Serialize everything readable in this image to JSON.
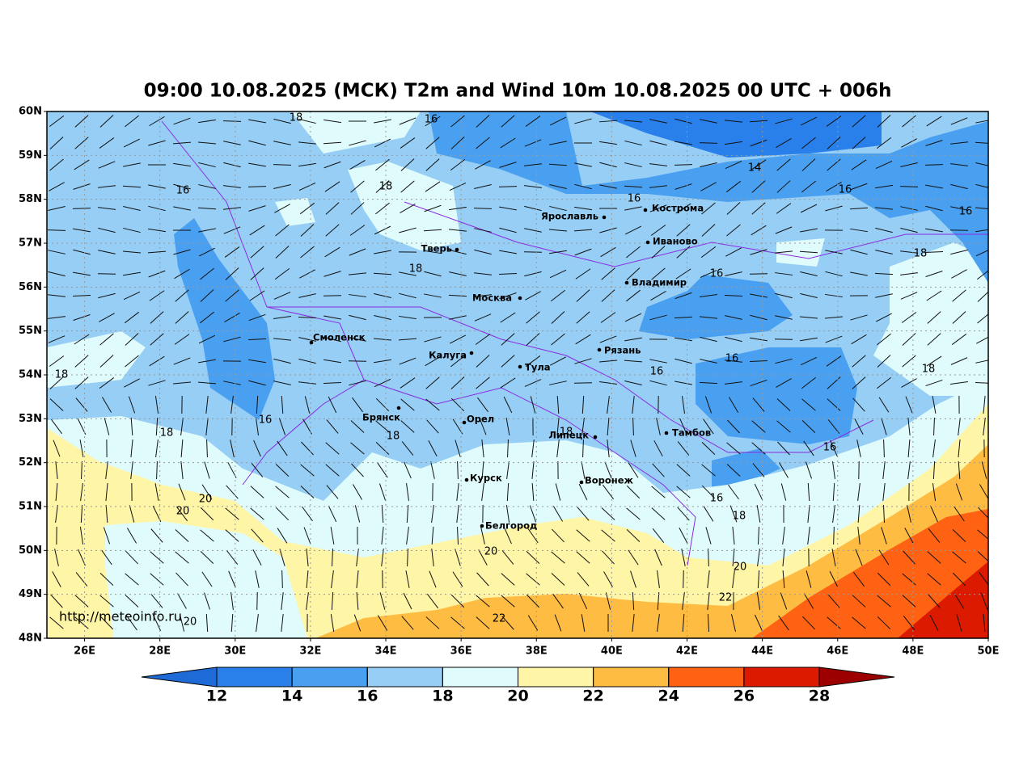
{
  "title": "09:00 10.08.2025 (МСК) T2m and Wind 10m 10.08.2025 00 UTC + 006h",
  "map": {
    "lat_labels": [
      "60N",
      "59N",
      "58N",
      "57N",
      "56N",
      "55N",
      "54N",
      "53N",
      "52N",
      "51N",
      "50N",
      "49N",
      "48N"
    ],
    "lon_labels": [
      "26E",
      "28E",
      "30E",
      "32E",
      "34E",
      "36E",
      "38E",
      "40E",
      "42E",
      "44E",
      "46E",
      "48E",
      "50E"
    ],
    "cities": [
      "Ярославль",
      "Кострома",
      "Иваново",
      "Тверь",
      "Владимир",
      "Москва",
      "Смоленск",
      "Калуга",
      "Рязань",
      "Тула",
      "Брянск",
      "Орел",
      "Тамбов",
      "Липецк",
      "Курск",
      "Воронеж",
      "Белгород"
    ],
    "contour_labels": [
      18,
      16,
      14,
      16,
      18,
      16,
      16,
      16,
      18,
      18,
      16,
      16,
      16,
      18,
      18,
      16,
      18,
      18,
      18,
      16,
      20,
      20,
      16,
      18,
      20,
      20,
      22,
      22,
      20
    ]
  },
  "colorbar": {
    "ticks": [
      12,
      14,
      16,
      18,
      20,
      22,
      24,
      26,
      28
    ],
    "colors": [
      "#1e6ad6",
      "#2a80ea",
      "#4aa0f0",
      "#96cef5",
      "#e0fbfb",
      "#fff5a6",
      "#ffbc42",
      "#ff6212",
      "#dc1a00",
      "#9c0000"
    ]
  },
  "footer": {
    "url": "http://meteoinfo.ru"
  }
}
